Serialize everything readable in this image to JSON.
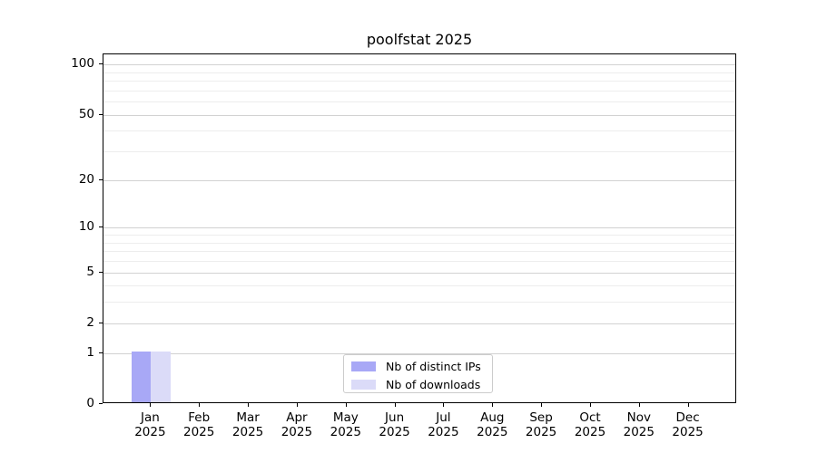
{
  "title": "poolfstat 2025",
  "chart_data": {
    "type": "bar",
    "title": "poolfstat 2025",
    "categories": [
      "Jan",
      "Feb",
      "Mar",
      "Apr",
      "May",
      "Jun",
      "Jul",
      "Aug",
      "Sep",
      "Oct",
      "Nov",
      "Dec"
    ],
    "year": "2025",
    "series": [
      {
        "name": "Nb of distinct IPs",
        "color": "#a8a8f6",
        "values": [
          1,
          0,
          0,
          0,
          0,
          0,
          0,
          0,
          0,
          0,
          0,
          0
        ]
      },
      {
        "name": "Nb of downloads",
        "color": "#dbdbf8",
        "values": [
          1,
          0,
          0,
          0,
          0,
          0,
          0,
          0,
          0,
          0,
          0,
          0
        ]
      }
    ],
    "xlabel": "",
    "ylabel": "",
    "y_axis": {
      "scale": "log1p",
      "major_ticks": [
        0,
        1,
        2,
        5,
        10,
        20,
        50,
        100
      ],
      "minor_gridlines": [
        3,
        4,
        6,
        7,
        8,
        9,
        30,
        40,
        60,
        70,
        80,
        90
      ],
      "range": [
        0,
        115
      ]
    },
    "grid": "horizontal",
    "legend": {
      "position": "inside-bottom-center",
      "border_color": "#cccccc"
    }
  }
}
